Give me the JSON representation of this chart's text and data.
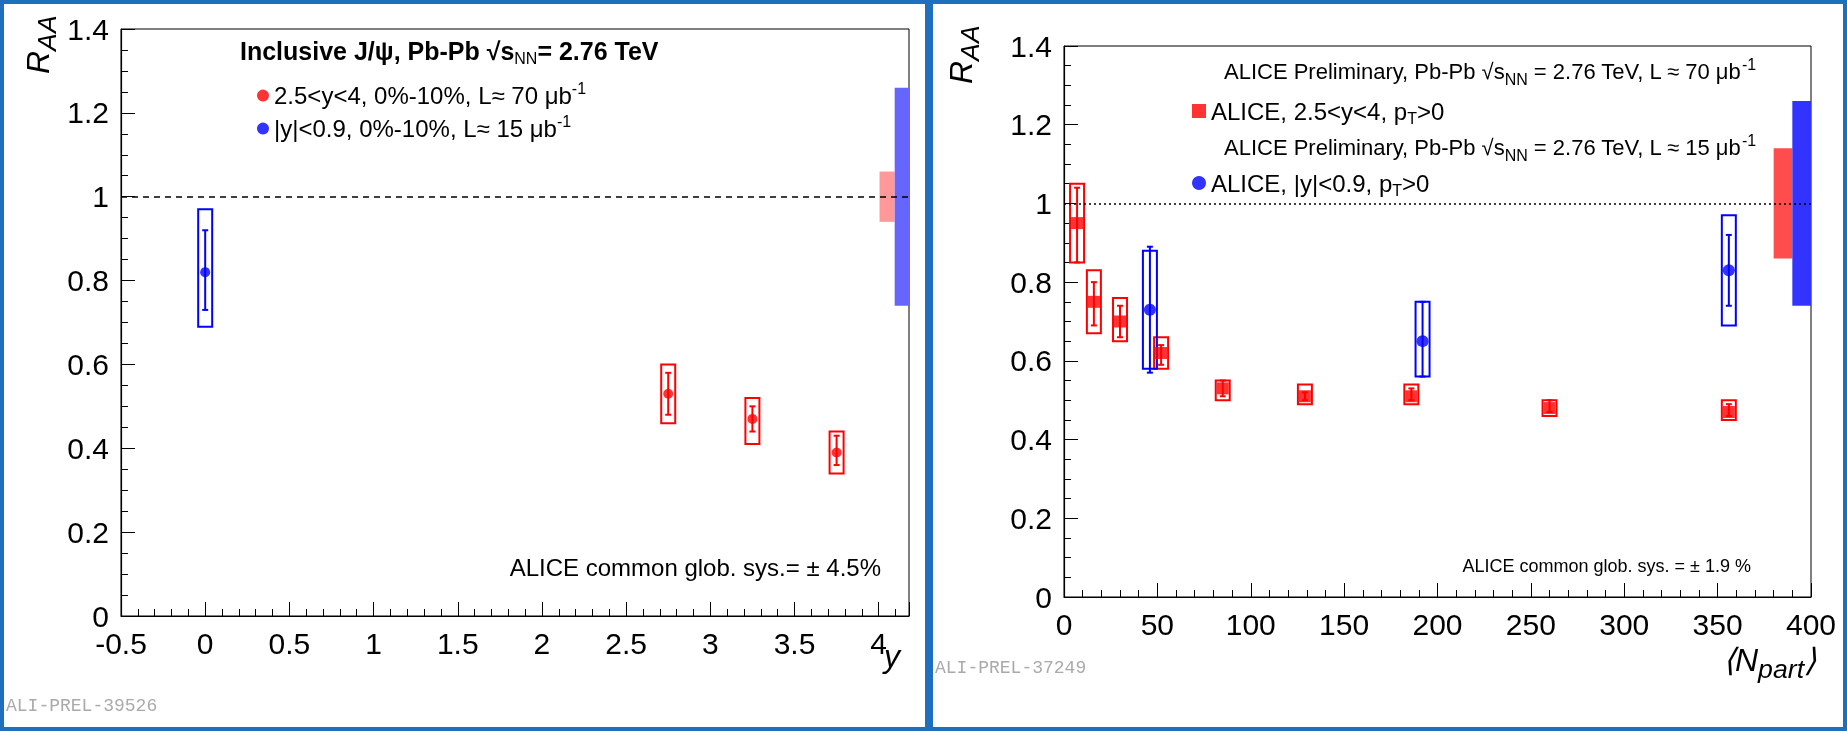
{
  "chart_data": [
    {
      "type": "scatter",
      "xlabel": "y",
      "ylabel": "R$_{AA}$",
      "legend_title": "Inclusive J/ψ, Pb-Pb √s$_{NN}$= 2.76 TeV",
      "legend": "top left",
      "xlim": [
        -0.5,
        4.18
      ],
      "xticks": [
        -0.5,
        0,
        0.5,
        1,
        1.5,
        2,
        2.5,
        3,
        3.5,
        4
      ],
      "ylim": [
        0,
        1.4
      ],
      "yticks": [
        0,
        0.2,
        0.4,
        0.6,
        0.8,
        1,
        1.2,
        1.4
      ],
      "ref_lines": [
        {
          "axis": "y",
          "value": 1,
          "line_style": "dashed",
          "color": "#000000"
        }
      ],
      "annotations": [
        "ALICE common glob. sys.= ± 4.5%",
        "ALI-PREL-39526"
      ],
      "series": [
        {
          "type": "bar",
          "color": "#ff0000",
          "line_style": "solid",
          "x": [
            2.75,
            3.25,
            3.75
          ],
          "base": [
            0.46,
            0.41,
            0.34
          ],
          "values": [
            0.14,
            0.11,
            0.1
          ]
        },
        {
          "type": "bar",
          "color": "#0000ff",
          "line_style": "solid",
          "x": [
            0
          ],
          "base": [
            0.69
          ],
          "values": [
            0.28
          ]
        },
        {
          "type": "bar",
          "colors": [
            "#ff9999",
            "#6666ff"
          ],
          "x": [
            4.05,
            4.14
          ],
          "base": [
            0.94,
            0.74
          ],
          "values": [
            0.12,
            0.52
          ]
        },
        {
          "name": "2.5<y<4, 0%-10%, L≈ 70 μb$^{-1}$",
          "color": "#ff0000",
          "marker": "circle",
          "x": [
            2.75,
            3.25,
            3.75
          ],
          "values": [
            0.53,
            0.47,
            0.39
          ],
          "errors": [
            [
              0.48,
              0.58
            ],
            [
              0.44,
              0.5
            ],
            [
              0.36,
              0.43
            ]
          ]
        },
        {
          "name": "|y|<0.9, 0%-10%, L≈ 15 μb$^{-1}$",
          "color": "#0000ff",
          "marker": "circle",
          "x": [
            0
          ],
          "values": [
            0.82
          ],
          "errors": [
            [
              0.73,
              0.92
            ]
          ]
        }
      ]
    },
    {
      "type": "scatter",
      "xlabel": "⟨N$_{part}$⟩",
      "ylabel": "R$_{AA}$",
      "legend": "top left",
      "xlim": [
        0,
        400
      ],
      "xticks": [
        0,
        50,
        100,
        150,
        200,
        250,
        300,
        350,
        400
      ],
      "ylim": [
        0,
        1.4
      ],
      "yticks": [
        0,
        0.2,
        0.4,
        0.6,
        0.8,
        1,
        1.2,
        1.4
      ],
      "ref_lines": [
        {
          "axis": "y",
          "value": 1,
          "line_style": "dotted",
          "color": "#000000"
        }
      ],
      "annotations": [
        "ALICE Preliminary, Pb-Pb √s$_{NN}$ = 2.76 TeV, L ≈ 70 μb$^{-1}$",
        "ALICE Preliminary, Pb-Pb √s$_{NN}$ = 2.76 TeV, L ≈ 15 μb$^{-1}$",
        "ALICE common glob. sys. = ± 1.9 %",
        "ALI-PREL-37249"
      ],
      "series": [
        {
          "type": "bar",
          "color": "#ff0000",
          "line_style": "solid",
          "x": [
            7,
            16,
            30,
            52,
            85,
            129,
            186,
            260,
            356
          ],
          "base": [
            0.85,
            0.67,
            0.65,
            0.58,
            0.5,
            0.49,
            0.49,
            0.46,
            0.45
          ],
          "values": [
            0.2,
            0.16,
            0.11,
            0.08,
            0.05,
            0.05,
            0.05,
            0.04,
            0.05
          ]
        },
        {
          "type": "bar",
          "color": "#0000ff",
          "line_style": "solid",
          "x": [
            46,
            192,
            356
          ],
          "base": [
            0.58,
            0.56,
            0.69
          ],
          "values": [
            0.3,
            0.19,
            0.28
          ]
        },
        {
          "type": "bar",
          "colors": [
            "#ff4d4d",
            "#3333ff"
          ],
          "x": [
            385,
            395
          ],
          "base": [
            0.86,
            0.74
          ],
          "values": [
            0.28,
            0.52
          ]
        },
        {
          "name": "ALICE, 2.5<y<4, p$_{T}$>0",
          "color": "#ff0000",
          "marker": "square",
          "x": [
            7,
            16,
            30,
            52,
            85,
            129,
            186,
            260,
            356
          ],
          "values": [
            0.95,
            0.75,
            0.7,
            0.62,
            0.53,
            0.51,
            0.51,
            0.48,
            0.47
          ],
          "errors": [
            [
              0.85,
              1.04
            ],
            [
              0.69,
              0.8
            ],
            [
              0.66,
              0.74
            ],
            [
              0.59,
              0.64
            ],
            [
              0.51,
              0.55
            ],
            [
              0.5,
              0.52
            ],
            [
              0.5,
              0.53
            ],
            [
              0.47,
              0.5
            ],
            [
              0.46,
              0.49
            ]
          ]
        },
        {
          "name": "ALICE, |y|<0.9, p$_{T}$>0",
          "color": "#0000ff",
          "marker": "circle",
          "x": [
            46,
            192,
            356
          ],
          "values": [
            0.73,
            0.65,
            0.83
          ],
          "errors": [
            [
              0.57,
              0.89
            ],
            [
              0.56,
              0.75
            ],
            [
              0.74,
              0.92
            ]
          ]
        }
      ]
    }
  ]
}
